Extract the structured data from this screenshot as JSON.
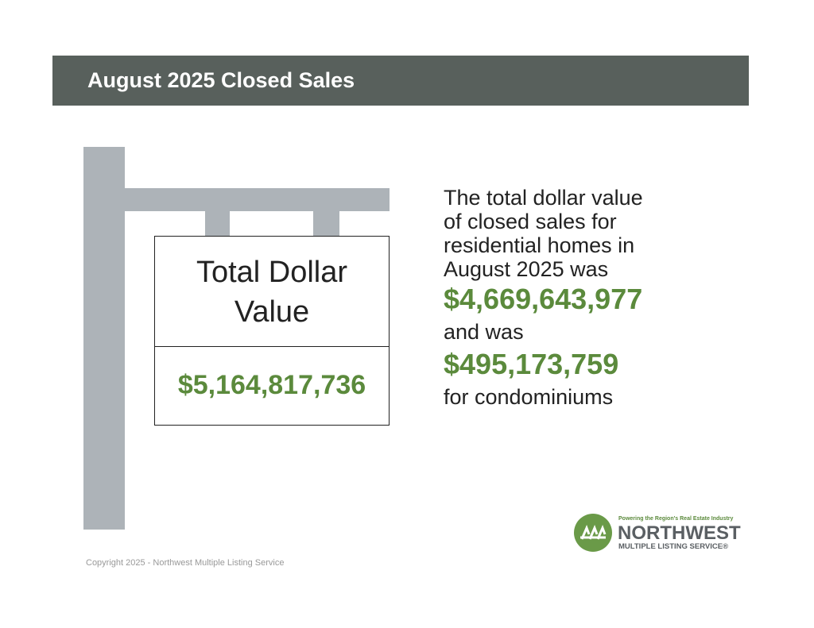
{
  "header": {
    "title": "August 2025 Closed Sales"
  },
  "sign": {
    "label": "Total Dollar Value",
    "value": "$5,164,817,736"
  },
  "summary": {
    "intro": "The total dollar value of closed sales for residential homes in August 2025 was",
    "residential_value": "$4,669,643,977",
    "connector": "and was",
    "condo_value": "$495,173,759",
    "outro": "for condominiums"
  },
  "logo": {
    "tagline": "Powering the Region's Real Estate Industry",
    "name": "NORTHWEST",
    "subname": "MULTIPLE LISTING SERVICE®"
  },
  "footer": {
    "copyright": "Copyright 2025 - Northwest Multiple Listing Service"
  }
}
